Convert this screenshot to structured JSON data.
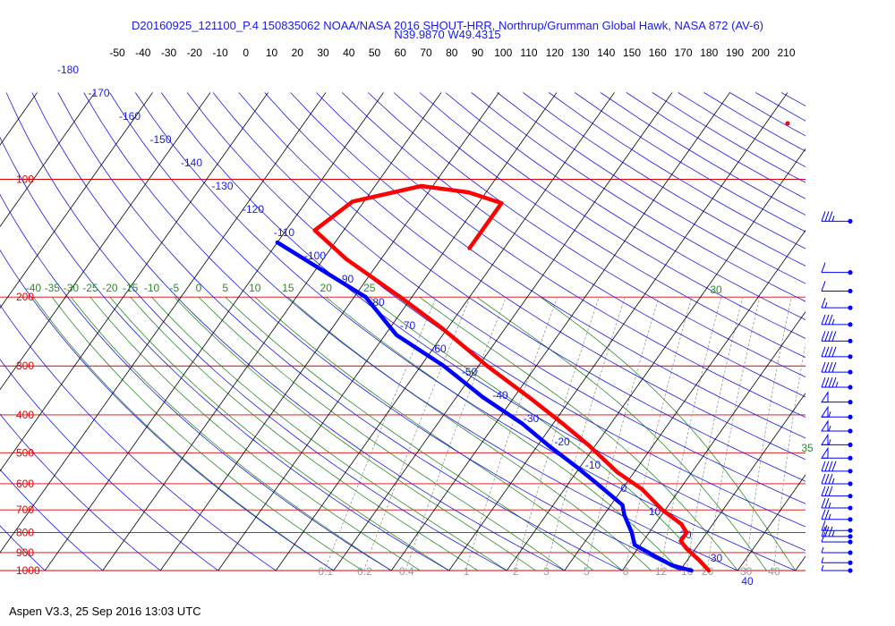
{
  "header": {
    "title": "D20160925_121100_P.4 150835062 NOAA/NASA 2016 SHOUT-HRR, Northrup/Grumman Global Hawk, NASA 872 (AV-6)",
    "location": "N39.9870 W49.4315"
  },
  "footer": {
    "text": "Aspen V3.3, 25 Sep 2016  13:03 UTC"
  },
  "chart_data": {
    "type": "line",
    "subtype": "skew-t log-p",
    "colors": {
      "isobar": "#e00000",
      "isotherm": "#000000",
      "dry_adiabat": "#1a1ae6",
      "moist_adiabat": "#2d8a2d",
      "mixing_ratio": "#999999",
      "temperature_trace": "#ff0000",
      "dewpoint_trace": "#0000ff"
    },
    "top_temperature_ticks": [
      "-50",
      "-40",
      "-30",
      "-20",
      "-10",
      "0",
      "10",
      "20",
      "30",
      "40",
      "50",
      "60",
      "70",
      "80",
      "90",
      "100",
      "110",
      "120",
      "130",
      "140",
      "150",
      "160",
      "170",
      "180",
      "190",
      "200",
      "210"
    ],
    "pressure_levels": [
      "100",
      "200",
      "300",
      "400",
      "500",
      "600",
      "700",
      "800",
      "900",
      "1000"
    ],
    "dry_adiabat_labels": [
      "-180",
      "-170",
      "-160",
      "-150",
      "-140",
      "-130",
      "-120",
      "-110",
      "-100",
      "-90",
      "-80",
      "-70",
      "-60",
      "-50",
      "-40",
      "-30",
      "-20",
      "-10",
      "0",
      "10",
      "20",
      "30",
      "40"
    ],
    "moist_adiabat_labels": [
      "-40",
      "-35",
      "-30",
      "-25",
      "-20",
      "-15",
      "-10",
      "-5",
      "0",
      "5",
      "10",
      "15",
      "20",
      "25",
      "30",
      "35"
    ],
    "mixing_ratio_labels": [
      "0.1",
      "0.2",
      "0.4",
      "1",
      "2",
      "3",
      "5",
      "8",
      "12",
      "16",
      "20",
      "30",
      "40"
    ],
    "series": [
      {
        "key": "temperature",
        "points": [
          [
            150,
            -56.0
          ],
          [
            115,
            -56.0
          ],
          [
            108,
            -63.0
          ],
          [
            104,
            -72.0
          ],
          [
            114,
            -82.0
          ],
          [
            135,
            -85.0
          ],
          [
            160,
            -76.0
          ],
          [
            200,
            -62.0
          ],
          [
            240,
            -51.0
          ],
          [
            300,
            -38.5
          ],
          [
            360,
            -27.5
          ],
          [
            420,
            -18.5
          ],
          [
            480,
            -11.0
          ],
          [
            560,
            -3.0
          ],
          [
            620,
            3.5
          ],
          [
            700,
            9.5
          ],
          [
            760,
            14.5
          ],
          [
            800,
            16.5
          ],
          [
            840,
            16.5
          ],
          [
            880,
            18.5
          ],
          [
            940,
            22.0
          ],
          [
            1000,
            25.0
          ]
        ]
      },
      {
        "key": "dewpoint",
        "points": [
          [
            145,
            -90.0
          ],
          [
            200,
            -68.0
          ],
          [
            250,
            -58.0
          ],
          [
            300,
            -46.0
          ],
          [
            360,
            -35.5
          ],
          [
            420,
            -25.5
          ],
          [
            480,
            -18.0
          ],
          [
            540,
            -11.0
          ],
          [
            600,
            -5.0
          ],
          [
            680,
            2.0
          ],
          [
            720,
            3.5
          ],
          [
            800,
            7.0
          ],
          [
            860,
            9.0
          ],
          [
            920,
            14.0
          ],
          [
            970,
            18.0
          ],
          [
            1000,
            22.0
          ]
        ]
      }
    ],
    "wind_barbs": [
      {
        "p": 128,
        "spd": 35
      },
      {
        "p": 173,
        "spd": 10
      },
      {
        "p": 193,
        "spd": 10
      },
      {
        "p": 213,
        "spd": 15
      },
      {
        "p": 235,
        "spd": 35
      },
      {
        "p": 259,
        "spd": 40
      },
      {
        "p": 284,
        "spd": 40
      },
      {
        "p": 311,
        "spd": 40
      },
      {
        "p": 340,
        "spd": 45
      },
      {
        "p": 371,
        "spd": 50
      },
      {
        "p": 405,
        "spd": 55
      },
      {
        "p": 440,
        "spd": 55
      },
      {
        "p": 477,
        "spd": 55
      },
      {
        "p": 516,
        "spd": 50
      },
      {
        "p": 557,
        "spd": 40
      },
      {
        "p": 600,
        "spd": 35
      },
      {
        "p": 645,
        "spd": 30
      },
      {
        "p": 692,
        "spd": 25
      },
      {
        "p": 740,
        "spd": 25
      },
      {
        "p": 790,
        "spd": 15
      },
      {
        "p": 818,
        "spd": 35
      },
      {
        "p": 845,
        "spd": 10
      },
      {
        "p": 900,
        "spd": 5
      },
      {
        "p": 955,
        "spd": 5
      },
      {
        "p": 1000,
        "spd": 5
      }
    ]
  }
}
